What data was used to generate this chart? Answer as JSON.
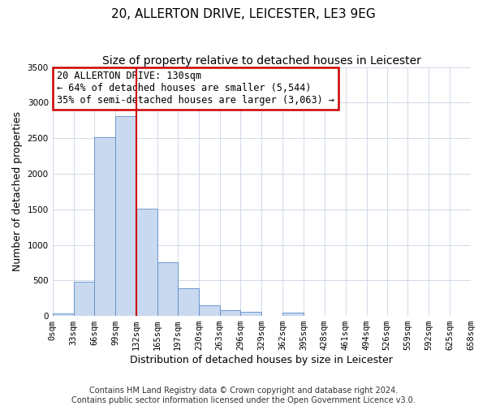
{
  "title": "20, ALLERTON DRIVE, LEICESTER, LE3 9EG",
  "subtitle": "Size of property relative to detached houses in Leicester",
  "xlabel": "Distribution of detached houses by size in Leicester",
  "ylabel": "Number of detached properties",
  "bin_edges": [
    0,
    33,
    66,
    99,
    132,
    165,
    197,
    230,
    263,
    296,
    329,
    362,
    395,
    428,
    461,
    494,
    526,
    559,
    592,
    625,
    658
  ],
  "bar_heights": [
    30,
    480,
    2510,
    2810,
    1510,
    750,
    390,
    150,
    80,
    55,
    0,
    50,
    0,
    0,
    0,
    0,
    0,
    0,
    0,
    0
  ],
  "bar_fill_color": "#c9d9f0",
  "bar_edge_color": "#5b8cc8",
  "vline_x": 132,
  "vline_color": "#cc0000",
  "annotation_line1": "20 ALLERTON DRIVE: 130sqm",
  "annotation_line2": "← 64% of detached houses are smaller (5,544)",
  "annotation_line3": "35% of semi-detached houses are larger (3,063) →",
  "annotation_box_edge_color": "#cc0000",
  "annotation_box_facecolor": "#ffffff",
  "ylim": [
    0,
    3500
  ],
  "yticks": [
    0,
    500,
    1000,
    1500,
    2000,
    2500,
    3000,
    3500
  ],
  "footer_line1": "Contains HM Land Registry data © Crown copyright and database right 2024.",
  "footer_line2": "Contains public sector information licensed under the Open Government Licence v3.0.",
  "background_color": "#ffffff",
  "grid_color": "#d0d8e8",
  "title_fontsize": 11,
  "subtitle_fontsize": 10,
  "axis_label_fontsize": 9,
  "tick_label_fontsize": 7.5,
  "annotation_fontsize": 8.5,
  "footer_fontsize": 7
}
